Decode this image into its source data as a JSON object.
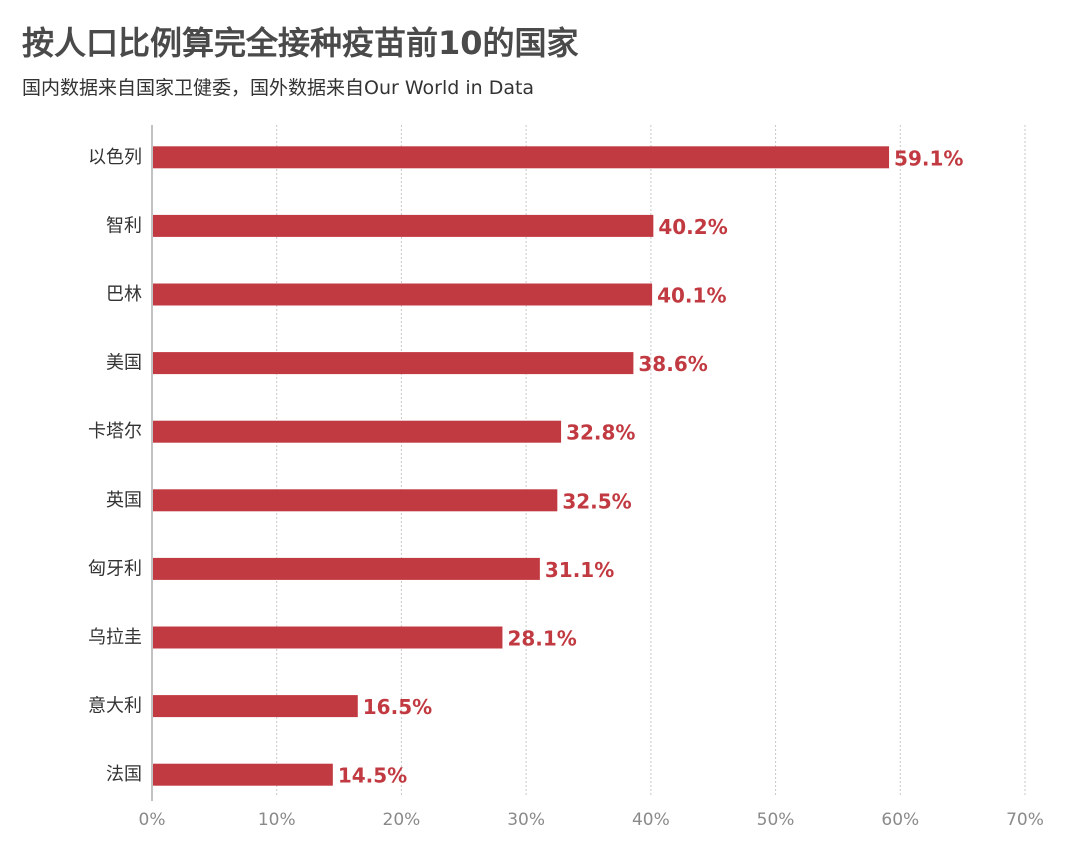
{
  "chart_data": {
    "type": "bar",
    "orientation": "horizontal",
    "title": "按人口比例算完全接种疫苗前10的国家",
    "subtitle": "国内数据来自国家卫健委，国外数据来自Our World in Data",
    "categories": [
      "以色列",
      "智利",
      "巴林",
      "美国",
      "卡塔尔",
      "英国",
      "匈牙利",
      "乌拉圭",
      "意大利",
      "法国"
    ],
    "values": [
      59.1,
      40.2,
      40.1,
      38.6,
      32.8,
      32.5,
      31.1,
      28.1,
      16.5,
      14.5
    ],
    "data_labels": [
      "59.1%",
      "40.2%",
      "40.1%",
      "38.6%",
      "32.8%",
      "32.5%",
      "31.1%",
      "28.1%",
      "16.5%",
      "14.5%"
    ],
    "xlim": [
      0,
      70
    ],
    "x_ticks": [
      0,
      10,
      20,
      30,
      40,
      50,
      60,
      70
    ],
    "x_tick_labels": [
      "0%",
      "10%",
      "20%",
      "30%",
      "40%",
      "50%",
      "60%",
      "70%"
    ],
    "xlabel": "",
    "ylabel": "",
    "grid": true,
    "legend": "none",
    "colors": {
      "bar": "#c23a41",
      "data_label": "#c23a41",
      "title": "#4a4a4a",
      "category_label": "#333333",
      "tick_label": "#8a8a8a",
      "gridline": "#c8c8c8",
      "axis": "#999999"
    }
  }
}
